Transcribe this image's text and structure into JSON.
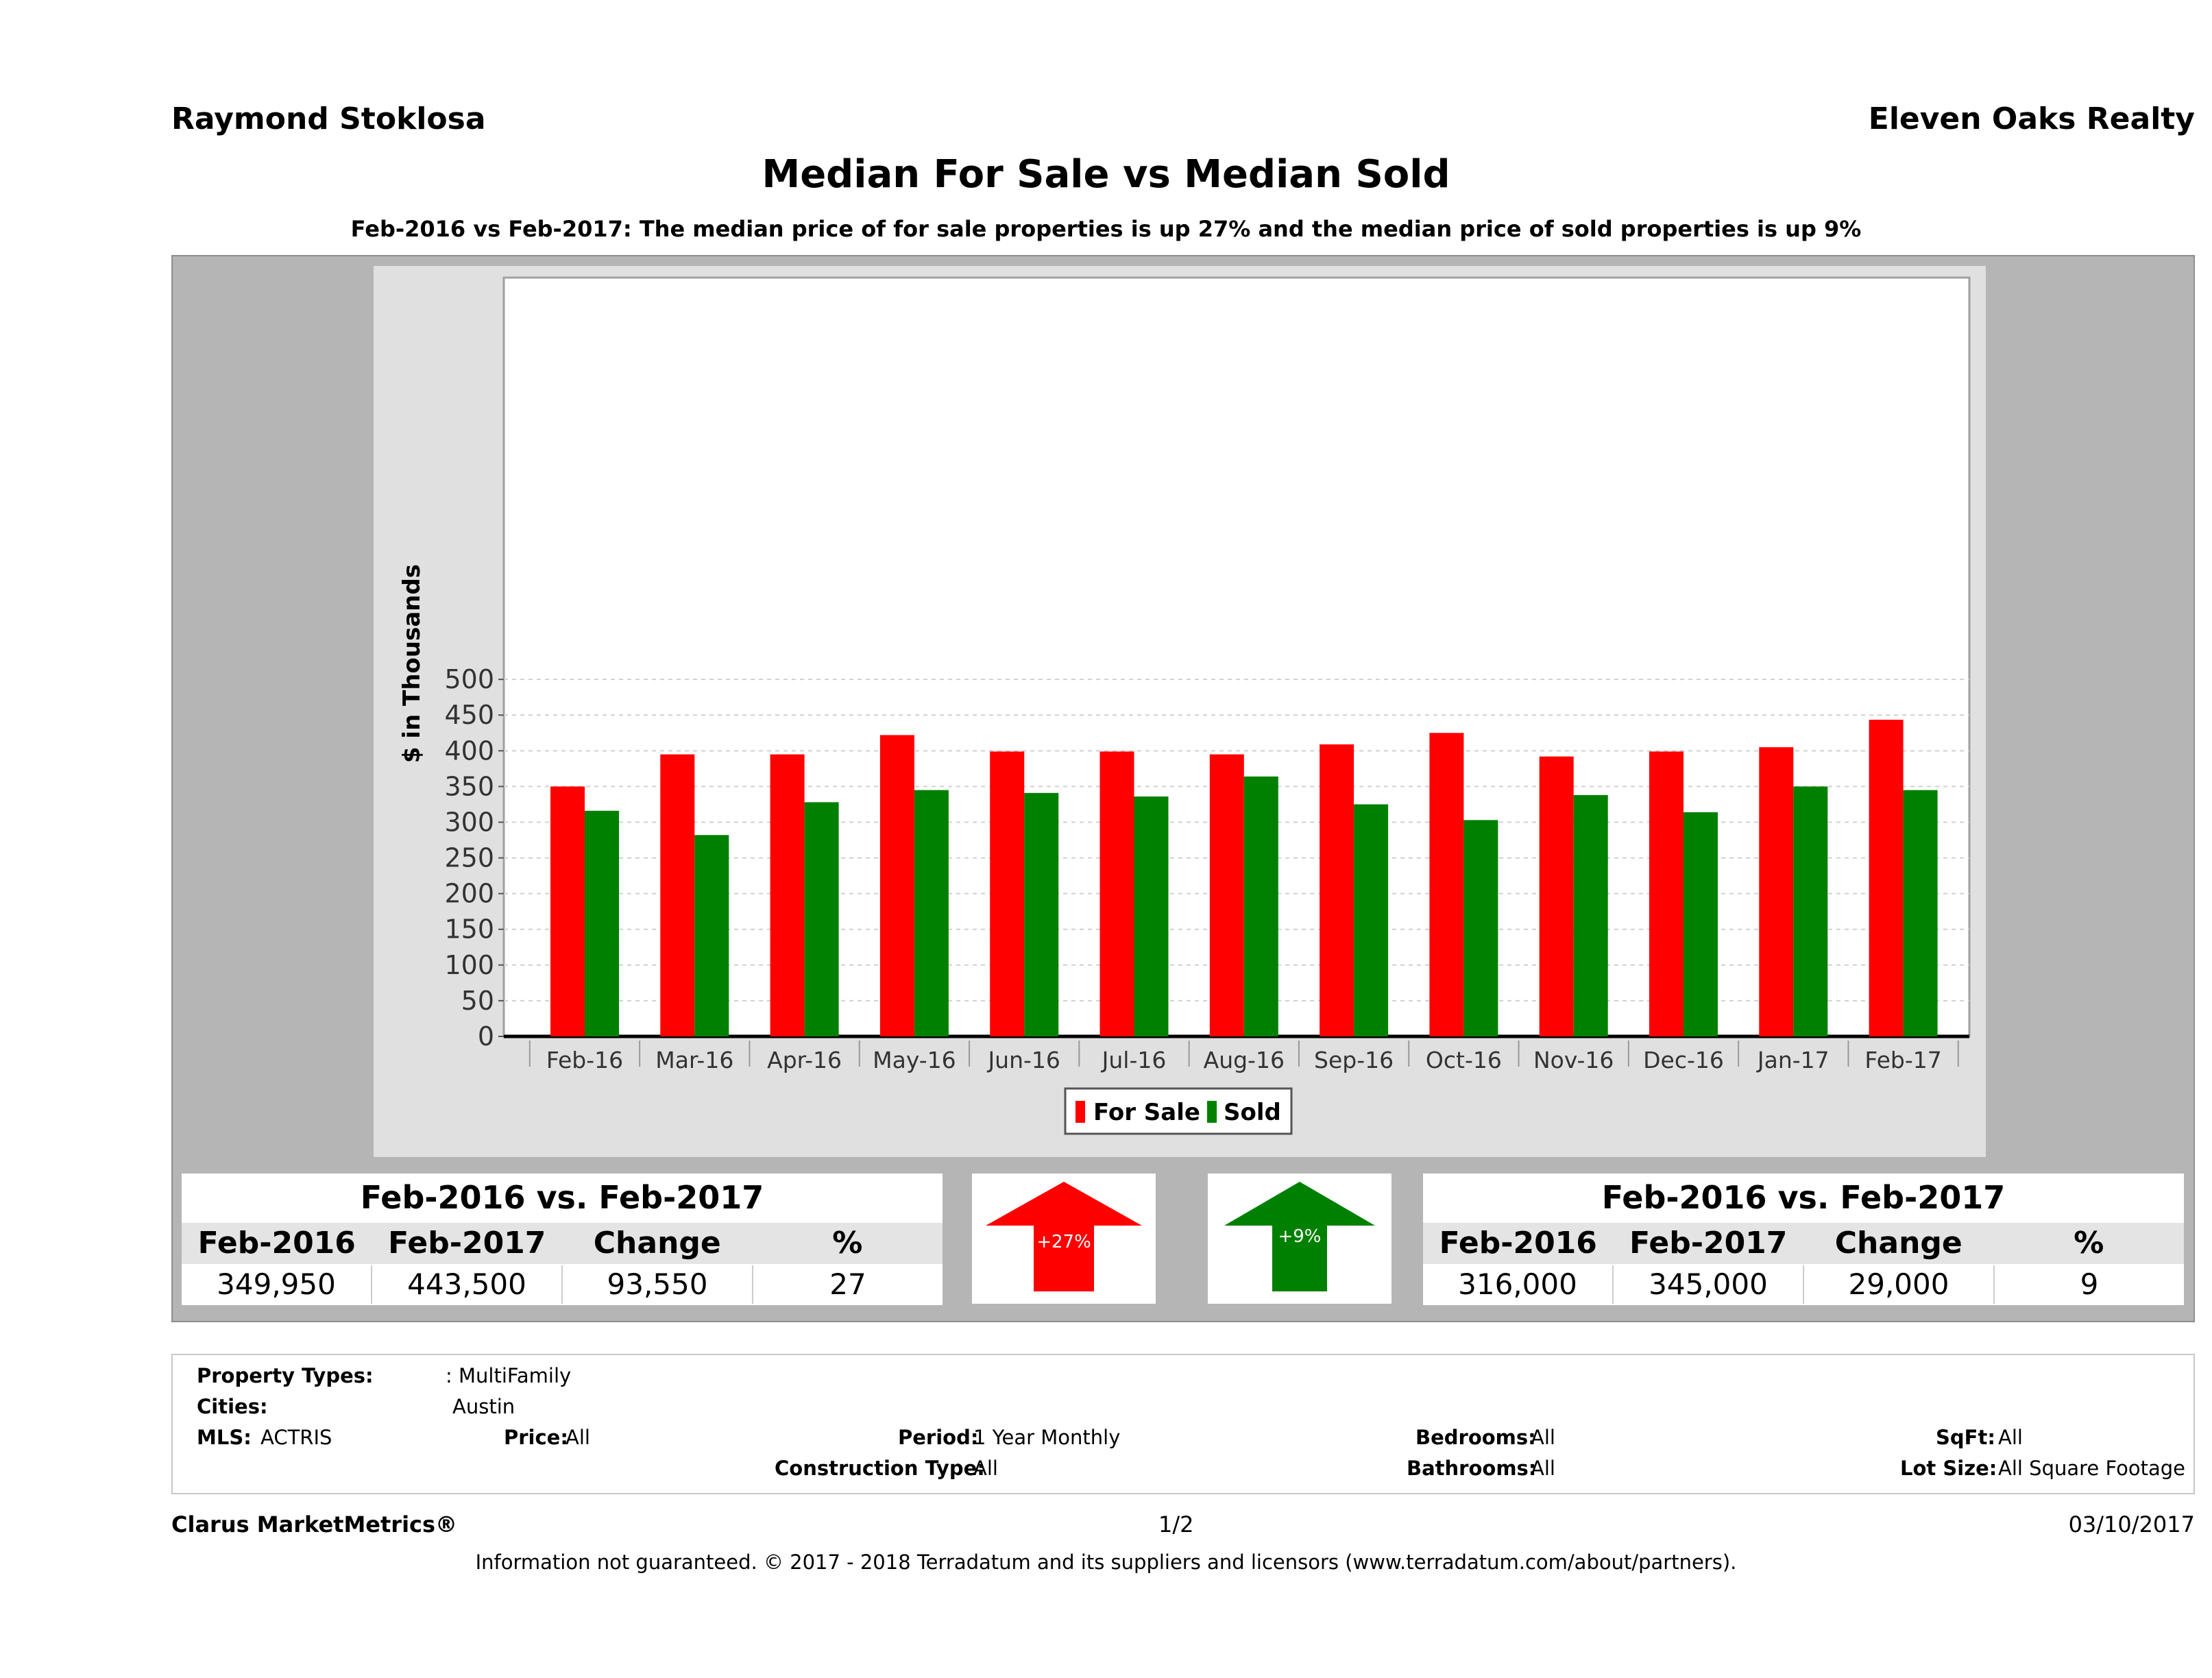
{
  "header": {
    "left": "Raymond Stoklosa",
    "right": "Eleven Oaks Realty"
  },
  "title": "Median For Sale vs Median Sold",
  "subtitle": "Feb-2016 vs Feb-2017: The median price of for sale properties is up 27% and the median price of sold properties is up 9%",
  "chart_data": {
    "type": "bar",
    "ylabel": "$ in Thousands",
    "ylim": [
      0,
      525
    ],
    "yticks": [
      0,
      50,
      100,
      150,
      200,
      250,
      300,
      350,
      400,
      450,
      500
    ],
    "grid": true,
    "legend_position": "bottom-center",
    "categories": [
      "Feb-16",
      "Mar-16",
      "Apr-16",
      "May-16",
      "Jun-16",
      "Jul-16",
      "Aug-16",
      "Sep-16",
      "Oct-16",
      "Nov-16",
      "Dec-16",
      "Jan-17",
      "Feb-17"
    ],
    "series": [
      {
        "name": "For Sale",
        "color": "#ff0000",
        "values": [
          350,
          395,
          395,
          422,
          399,
          399,
          395,
          409,
          425,
          392,
          399,
          405,
          443.5
        ]
      },
      {
        "name": "Sold",
        "color": "#008000",
        "values": [
          316,
          282,
          328,
          345,
          341,
          336,
          364,
          325,
          303,
          338,
          314,
          350,
          345
        ]
      }
    ]
  },
  "forsale_table": {
    "title": "Feb-2016 vs. Feb-2017",
    "headers": [
      "Feb-2016",
      "Feb-2017",
      "Change",
      "%"
    ],
    "values": [
      "349,950",
      "443,500",
      "93,550",
      "27"
    ]
  },
  "sold_table": {
    "title": "Feb-2016 vs. Feb-2017",
    "headers": [
      "Feb-2016",
      "Feb-2017",
      "Change",
      "%"
    ],
    "values": [
      "316,000",
      "345,000",
      "29,000",
      "9"
    ]
  },
  "arrows": {
    "forsale": {
      "label": "+27%",
      "color": "#ff0000"
    },
    "sold": {
      "label": "+9%",
      "color": "#008000"
    }
  },
  "info": {
    "property_types_label": "Property Types:",
    "property_types_value": ": MultiFamily",
    "cities_label": "Cities:",
    "cities_value": "Austin",
    "mls_label": "MLS:",
    "mls_value": "ACTRIS",
    "price_label": "Price:",
    "price_value": "All",
    "period_label": "Period:",
    "period_value": "1 Year Monthly",
    "bedrooms_label": "Bedrooms:",
    "bedrooms_value": "All",
    "sqft_label": "SqFt:",
    "sqft_value": "All",
    "construction_label": "Construction Type:",
    "construction_value": "All",
    "bathrooms_label": "Bathrooms:",
    "bathrooms_value": "All",
    "lotsize_label": "Lot Size:",
    "lotsize_value": "All Square Footage"
  },
  "footer": {
    "brand": "Clarus MarketMetrics®",
    "page": "1/2",
    "date": "03/10/2017",
    "disclaimer": "Information not guaranteed. © 2017 - 2018 Terradatum and its suppliers and licensors (www.terradatum.com/about/partners)."
  }
}
